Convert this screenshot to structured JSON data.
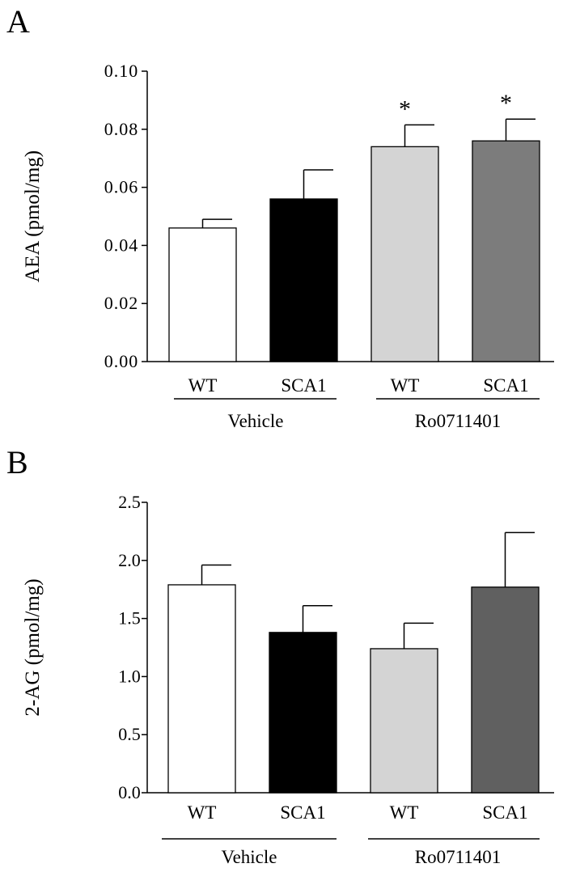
{
  "chart_data": [
    {
      "type": "bar",
      "panel_label": "A",
      "ylabel": "AEA (pmol/mg)",
      "ylim": [
        0,
        0.1
      ],
      "yticks": [
        "0.00",
        "0.02",
        "0.04",
        "0.06",
        "0.08",
        "0.10"
      ],
      "categories": [
        "WT",
        "SCA1",
        "WT",
        "SCA1"
      ],
      "groups": [
        {
          "label": "Vehicle",
          "categories": [
            0,
            1
          ]
        },
        {
          "label": "Ro0711401",
          "categories": [
            2,
            3
          ]
        }
      ],
      "values": [
        0.046,
        0.056,
        0.074,
        0.076
      ],
      "errors": [
        0.003,
        0.01,
        0.0075,
        0.0075
      ],
      "significance": [
        "",
        "",
        "*",
        "*"
      ],
      "colors": [
        "#ffffff",
        "#000000",
        "#d4d4d4",
        "#7c7c7c"
      ]
    },
    {
      "type": "bar",
      "panel_label": "B",
      "ylabel": "2-AG (pmol/mg)",
      "ylim": [
        0,
        2.5
      ],
      "yticks": [
        "0.0",
        "0.5",
        "1.0",
        "1.5",
        "2.0",
        "2.5"
      ],
      "categories": [
        "WT",
        "SCA1",
        "WT",
        "SCA1"
      ],
      "groups": [
        {
          "label": "Vehicle",
          "categories": [
            0,
            1
          ]
        },
        {
          "label": "Ro0711401",
          "categories": [
            2,
            3
          ]
        }
      ],
      "values": [
        1.79,
        1.38,
        1.24,
        1.77
      ],
      "errors": [
        0.17,
        0.23,
        0.22,
        0.47
      ],
      "significance": [
        "",
        "",
        "",
        ""
      ],
      "colors": [
        "#ffffff",
        "#000000",
        "#d4d4d4",
        "#606060"
      ]
    }
  ]
}
